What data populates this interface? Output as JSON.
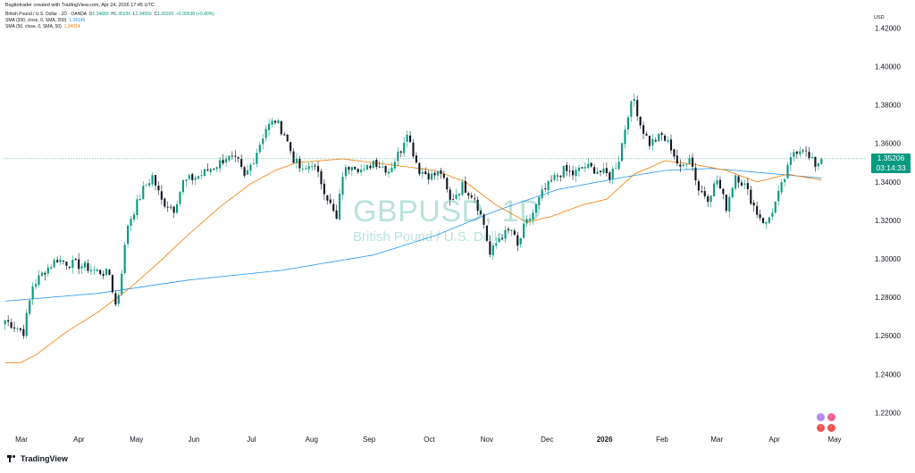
{
  "header": {
    "text": "Bagitotrader created with TradingView.com, Apr 24, 2026 17:45 UTC"
  },
  "legend": {
    "symbol_line": "British Pound / U.S. Dollar · 1D · OANDA",
    "o_label": "O",
    "o_val": "1.34685",
    "h_label": "H",
    "h_val": "1.35236",
    "l_label": "L",
    "l_val": "1.34556",
    "c_label": "C",
    "c_val": "1.35206",
    "change": "+0.00538 (+0.40%)",
    "sma200_label": "SMA (200, close, 0, SMA, 200)",
    "sma200_val": "1.34145",
    "sma50_label": "SMA (50, close, 0, SMA, 50)",
    "sma50_val": "1.34014"
  },
  "watermark": {
    "symbol": "GBPUSD, 1D",
    "description": "British Pound / U.S. Dollar"
  },
  "price_tag": {
    "price": "1.35206",
    "countdown": "03:14:33"
  },
  "brand": {
    "name": "TradingView"
  },
  "colors": {
    "up": "#089981",
    "down": "#131722",
    "sma200": "#2196f3",
    "sma50": "#f57c00",
    "last": "#089981"
  },
  "chart_data": {
    "type": "line",
    "y_axis_unit": "USD",
    "y_ticks": [
      "1.42000",
      "1.40000",
      "1.38000",
      "1.36000",
      "1.34000",
      "1.32000",
      "1.30000",
      "1.28000",
      "1.26000",
      "1.24000",
      "1.22000"
    ],
    "ylim": [
      1.2095,
      1.4295
    ],
    "x_labels": [
      "Mar",
      "Apr",
      "May",
      "Jun",
      "Jul",
      "Aug",
      "Sep",
      "Oct",
      "Nov",
      "Dec",
      "2026",
      "Feb",
      "Mar",
      "Apr",
      "May"
    ],
    "grid": false,
    "last_price": 1.35206,
    "price_anchors": [
      [
        0,
        1.268
      ],
      [
        6,
        1.262
      ],
      [
        9,
        1.286
      ],
      [
        13,
        1.294
      ],
      [
        17,
        1.3
      ],
      [
        20,
        1.298
      ],
      [
        23,
        1.297
      ],
      [
        26,
        1.296
      ],
      [
        29,
        1.294
      ],
      [
        34,
        1.292
      ],
      [
        36,
        1.276
      ],
      [
        37,
        1.282
      ],
      [
        40,
        1.318
      ],
      [
        45,
        1.336
      ],
      [
        48,
        1.343
      ],
      [
        51,
        1.33
      ],
      [
        55,
        1.326
      ],
      [
        58,
        1.34
      ],
      [
        63,
        1.343
      ],
      [
        67,
        1.347
      ],
      [
        70,
        1.35
      ],
      [
        72,
        1.353
      ],
      [
        76,
        1.35
      ],
      [
        78,
        1.342
      ],
      [
        81,
        1.352
      ],
      [
        85,
        1.368
      ],
      [
        88,
        1.372
      ],
      [
        91,
        1.365
      ],
      [
        94,
        1.352
      ],
      [
        97,
        1.345
      ],
      [
        100,
        1.35
      ],
      [
        103,
        1.34
      ],
      [
        108,
        1.32
      ],
      [
        110,
        1.344
      ],
      [
        113,
        1.35
      ],
      [
        117,
        1.345
      ],
      [
        120,
        1.351
      ],
      [
        125,
        1.346
      ],
      [
        129,
        1.357
      ],
      [
        131,
        1.367
      ],
      [
        132,
        1.36
      ],
      [
        135,
        1.346
      ],
      [
        139,
        1.343
      ],
      [
        142,
        1.345
      ],
      [
        145,
        1.33
      ],
      [
        149,
        1.338
      ],
      [
        153,
        1.332
      ],
      [
        156,
        1.318
      ],
      [
        158,
        1.302
      ],
      [
        161,
        1.311
      ],
      [
        165,
        1.315
      ],
      [
        167,
        1.306
      ],
      [
        169,
        1.316
      ],
      [
        172,
        1.324
      ],
      [
        175,
        1.334
      ],
      [
        179,
        1.342
      ],
      [
        182,
        1.346
      ],
      [
        185,
        1.344
      ],
      [
        189,
        1.348
      ],
      [
        193,
        1.346
      ],
      [
        197,
        1.343
      ],
      [
        200,
        1.352
      ],
      [
        203,
        1.376
      ],
      [
        205,
        1.383
      ],
      [
        207,
        1.37
      ],
      [
        210,
        1.36
      ],
      [
        214,
        1.364
      ],
      [
        217,
        1.358
      ],
      [
        220,
        1.346
      ],
      [
        223,
        1.354
      ],
      [
        226,
        1.336
      ],
      [
        229,
        1.332
      ],
      [
        232,
        1.341
      ],
      [
        235,
        1.327
      ],
      [
        238,
        1.344
      ],
      [
        241,
        1.338
      ],
      [
        245,
        1.324
      ],
      [
        248,
        1.318
      ],
      [
        251,
        1.329
      ],
      [
        254,
        1.342
      ],
      [
        257,
        1.356
      ],
      [
        260,
        1.358
      ],
      [
        262,
        1.352
      ],
      [
        264,
        1.349
      ],
      [
        266,
        1.352
      ]
    ],
    "sma50_anchors": [
      [
        0,
        1.246
      ],
      [
        5,
        1.246
      ],
      [
        10,
        1.25
      ],
      [
        20,
        1.262
      ],
      [
        30,
        1.272
      ],
      [
        40,
        1.284
      ],
      [
        50,
        1.298
      ],
      [
        60,
        1.313
      ],
      [
        70,
        1.327
      ],
      [
        80,
        1.339
      ],
      [
        88,
        1.346
      ],
      [
        95,
        1.35
      ],
      [
        110,
        1.352
      ],
      [
        125,
        1.349
      ],
      [
        140,
        1.346
      ],
      [
        150,
        1.34
      ],
      [
        160,
        1.328
      ],
      [
        170,
        1.319
      ],
      [
        178,
        1.322
      ],
      [
        188,
        1.328
      ],
      [
        196,
        1.331
      ],
      [
        205,
        1.344
      ],
      [
        215,
        1.351
      ],
      [
        225,
        1.349
      ],
      [
        235,
        1.346
      ],
      [
        245,
        1.34
      ],
      [
        255,
        1.344
      ],
      [
        266,
        1.341
      ]
    ],
    "sma200_anchors": [
      [
        0,
        1.278
      ],
      [
        30,
        1.282
      ],
      [
        60,
        1.289
      ],
      [
        90,
        1.294
      ],
      [
        120,
        1.302
      ],
      [
        140,
        1.312
      ],
      [
        160,
        1.325
      ],
      [
        180,
        1.336
      ],
      [
        200,
        1.342
      ],
      [
        215,
        1.346
      ],
      [
        230,
        1.347
      ],
      [
        245,
        1.345
      ],
      [
        266,
        1.342
      ]
    ]
  }
}
